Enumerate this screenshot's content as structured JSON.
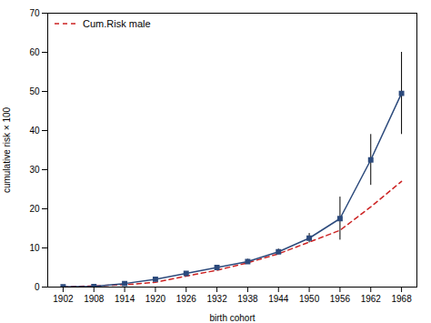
{
  "chart_data": {
    "type": "line",
    "xlabel": "birth cohort",
    "ylabel": "cumulative risk × 100",
    "x": [
      1902,
      1908,
      1914,
      1920,
      1926,
      1932,
      1938,
      1944,
      1950,
      1956,
      1962,
      1968
    ],
    "series": [
      {
        "name": "Cum.Risk male",
        "color": "#cc2222",
        "line_style": "dashed",
        "values": [
          0.05,
          0.3,
          0.6,
          1.2,
          2.8,
          4.3,
          6.2,
          8.5,
          11.5,
          14.5,
          20.5,
          27.0
        ]
      },
      {
        "color": "#2c4a7c",
        "line_style": "solid",
        "marker": "square",
        "values": [
          0.05,
          0.15,
          0.9,
          2.0,
          3.5,
          5.0,
          6.5,
          9.0,
          12.5,
          17.5,
          32.5,
          49.5
        ],
        "errors": [
          0.0,
          0.0,
          0.0,
          0.0,
          0.3,
          0.5,
          0.6,
          0.7,
          1.2,
          5.5,
          6.5,
          10.5
        ]
      }
    ],
    "xlim": [
      1899,
      1971
    ],
    "xticks": [
      1902,
      1908,
      1914,
      1920,
      1926,
      1932,
      1938,
      1944,
      1950,
      1956,
      1962,
      1968
    ],
    "ylim": [
      0,
      70
    ],
    "yticks": [
      0,
      10,
      20,
      30,
      40,
      50,
      60,
      70
    ],
    "grid": false,
    "legend": "upper left"
  }
}
